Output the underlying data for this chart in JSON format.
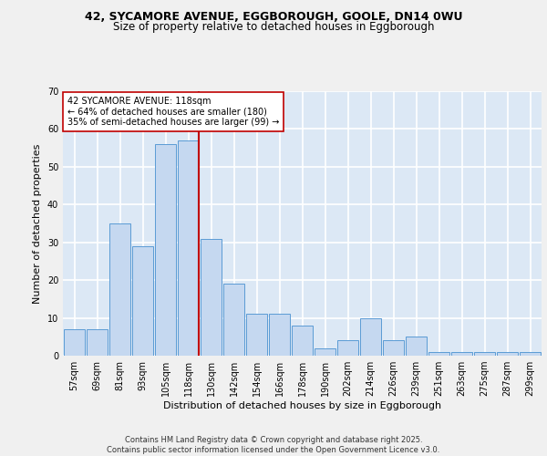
{
  "title_line1": "42, SYCAMORE AVENUE, EGGBOROUGH, GOOLE, DN14 0WU",
  "title_line2": "Size of property relative to detached houses in Eggborough",
  "xlabel": "Distribution of detached houses by size in Eggborough",
  "ylabel": "Number of detached properties",
  "categories": [
    "57sqm",
    "69sqm",
    "81sqm",
    "93sqm",
    "105sqm",
    "118sqm",
    "130sqm",
    "142sqm",
    "154sqm",
    "166sqm",
    "178sqm",
    "190sqm",
    "202sqm",
    "214sqm",
    "226sqm",
    "239sqm",
    "251sqm",
    "263sqm",
    "275sqm",
    "287sqm",
    "299sqm"
  ],
  "values": [
    7,
    7,
    35,
    29,
    56,
    57,
    31,
    19,
    11,
    11,
    8,
    2,
    4,
    10,
    4,
    5,
    1,
    1,
    1,
    1,
    1
  ],
  "bar_color": "#c5d8f0",
  "bar_edge_color": "#5b9bd5",
  "highlight_index": 5,
  "vline_color": "#c00000",
  "annotation_text": "42 SYCAMORE AVENUE: 118sqm\n← 64% of detached houses are smaller (180)\n35% of semi-detached houses are larger (99) →",
  "annotation_box_color": "#ffffff",
  "annotation_box_edge": "#c00000",
  "ylim": [
    0,
    70
  ],
  "yticks": [
    0,
    10,
    20,
    30,
    40,
    50,
    60,
    70
  ],
  "background_color": "#dce8f5",
  "grid_color": "#ffffff",
  "footer": "Contains HM Land Registry data © Crown copyright and database right 2025.\nContains public sector information licensed under the Open Government Licence v3.0.",
  "title_fontsize": 9,
  "axis_label_fontsize": 8,
  "tick_fontsize": 7,
  "annotation_fontsize": 7,
  "footer_fontsize": 6
}
